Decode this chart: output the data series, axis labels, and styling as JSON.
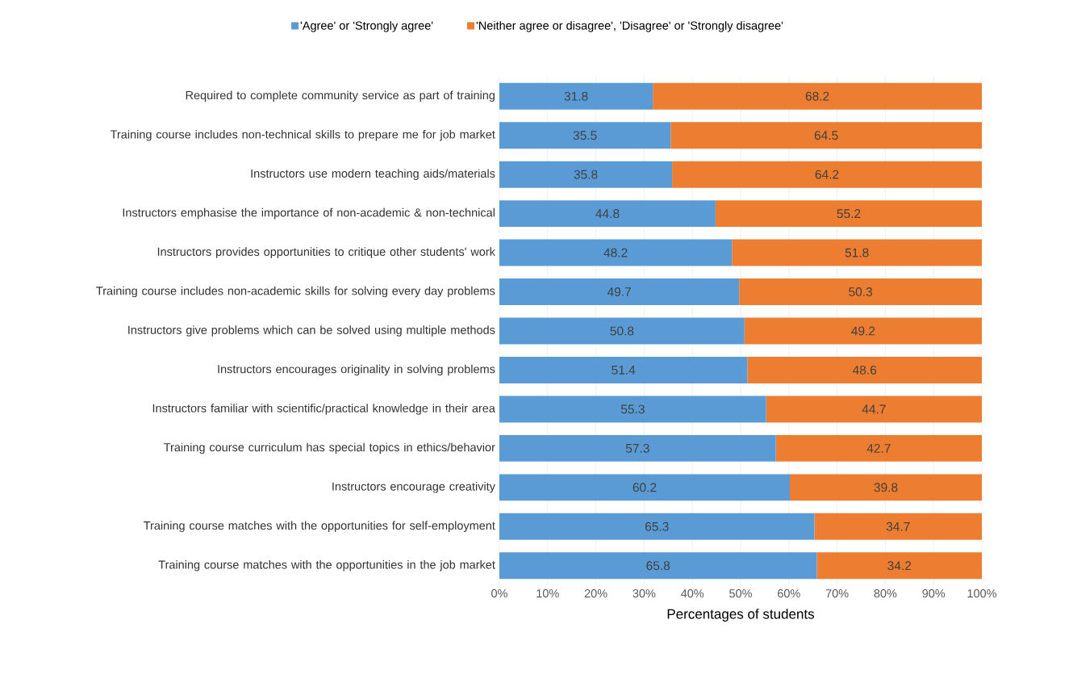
{
  "chart_data": {
    "type": "bar",
    "orientation": "horizontal",
    "stacked": true,
    "categories": [
      "Required to complete community service as part of training",
      "Training course includes non-technical skills to prepare me for job market",
      "Instructors use modern teaching aids/materials",
      "Instructors emphasise the importance of non-academic & non-technical",
      "Instructors provides opportunities to critique other students' work",
      "Training course includes non-academic skills for solving every day problems",
      "Instructors give problems which can be solved using multiple methods",
      "Instructors encourages originality in solving problems",
      "Instructors familiar with scientific/practical knowledge in their area",
      "Training course curriculum has special topics in ethics/behavior",
      "Instructors encourage creativity",
      "Training course matches with the opportunities for self-employment",
      "Training course matches with the opportunities in the job market"
    ],
    "series": [
      {
        "name": "'Agree' or 'Strongly agree'",
        "color": "#5b9bd5",
        "values": [
          31.8,
          35.5,
          35.8,
          44.8,
          48.2,
          49.7,
          50.8,
          51.4,
          55.3,
          57.3,
          60.2,
          65.3,
          65.8
        ]
      },
      {
        "name": "'Neither agree or disagree', 'Disagree' or 'Strongly disagree'",
        "color": "#ed7d31",
        "values": [
          68.2,
          64.5,
          64.2,
          55.2,
          51.8,
          50.3,
          49.2,
          48.6,
          44.7,
          42.7,
          39.8,
          34.7,
          34.2
        ]
      }
    ],
    "xlabel": "Percentages of students",
    "xlim": [
      0,
      100
    ],
    "xticks": [
      {
        "value": 0,
        "label": "0%"
      },
      {
        "value": 10,
        "label": "10%"
      },
      {
        "value": 20,
        "label": "20%"
      },
      {
        "value": 30,
        "label": "30%"
      },
      {
        "value": 40,
        "label": "40%"
      },
      {
        "value": 50,
        "label": "50%"
      },
      {
        "value": 60,
        "label": "60%"
      },
      {
        "value": 70,
        "label": "70%"
      },
      {
        "value": 80,
        "label": "80%"
      },
      {
        "value": 90,
        "label": "90%"
      },
      {
        "value": 100,
        "label": "100%"
      }
    ],
    "data_labels": true,
    "grid": "x",
    "legend": "top"
  }
}
